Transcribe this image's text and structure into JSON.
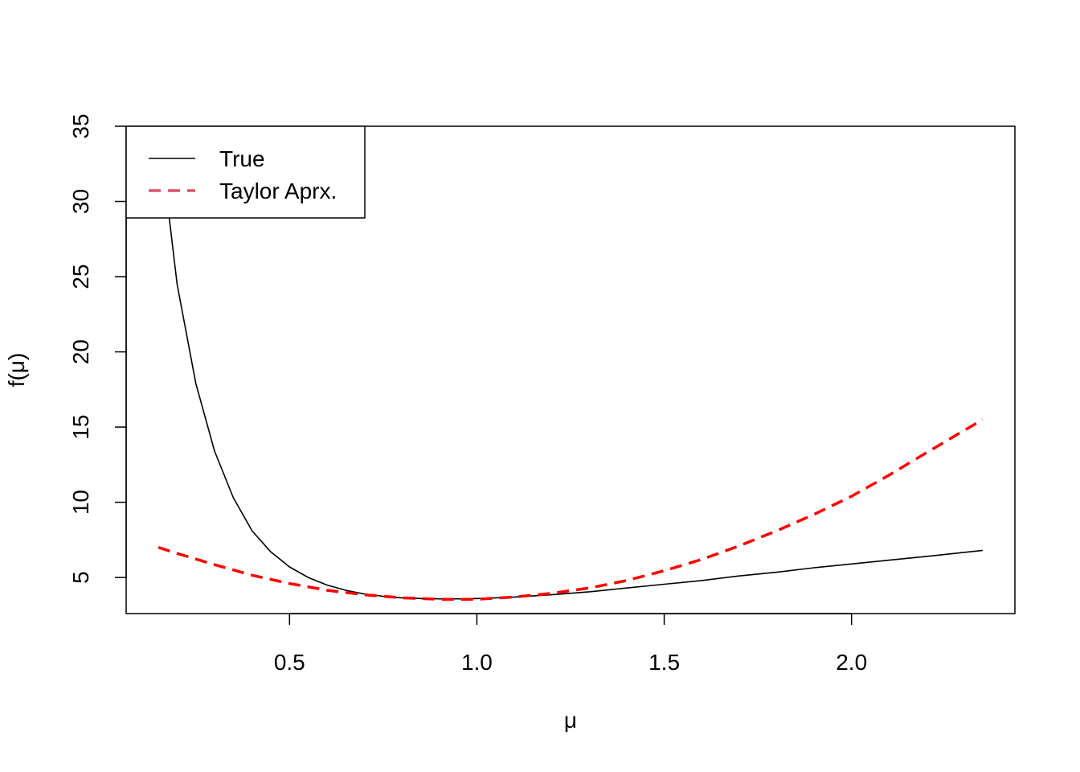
{
  "chart_data": {
    "type": "line",
    "title": "",
    "xlabel": "μ",
    "ylabel": "f(μ)",
    "xlim": [
      0.064,
      2.436
    ],
    "ylim": [
      2.6,
      35
    ],
    "x_ticks": [
      0.5,
      1.0,
      1.5,
      2.0
    ],
    "x_tick_labels": [
      "0.5",
      "1.0",
      "1.5",
      "2.0"
    ],
    "y_ticks": [
      5,
      10,
      15,
      20,
      25,
      30,
      35
    ],
    "y_tick_labels": [
      "5",
      "10",
      "15",
      "20",
      "25",
      "30",
      "35"
    ],
    "grid": false,
    "legend": {
      "placement": "top-left",
      "entries": [
        {
          "label": "True",
          "color": "#000000",
          "dash": "solid"
        },
        {
          "label": "Taylor Aprx.",
          "color": "#DF536B",
          "dash": "dashed"
        }
      ]
    },
    "series": [
      {
        "label": "True",
        "color": "#000000",
        "style": "solid",
        "x": [
          0.15,
          0.2,
          0.25,
          0.3,
          0.35,
          0.4,
          0.45,
          0.5,
          0.55,
          0.6,
          0.65,
          0.7,
          0.75,
          0.8,
          0.85,
          0.9,
          0.95,
          1.0,
          1.05,
          1.1,
          1.2,
          1.3,
          1.4,
          1.5,
          1.6,
          1.7,
          1.8,
          1.9,
          2.0,
          2.1,
          2.2,
          2.35
        ],
        "y": [
          35.0,
          24.5,
          17.9,
          13.4,
          10.3,
          8.1,
          6.7,
          5.7,
          5.0,
          4.5,
          4.15,
          3.9,
          3.75,
          3.65,
          3.6,
          3.58,
          3.58,
          3.6,
          3.65,
          3.7,
          3.85,
          4.05,
          4.3,
          4.55,
          4.8,
          5.1,
          5.35,
          5.65,
          5.9,
          6.15,
          6.4,
          6.8
        ]
      },
      {
        "label": "Taylor Aprx.",
        "color": "#FF0000",
        "style": "dashed",
        "x": [
          0.15,
          0.2,
          0.3,
          0.4,
          0.5,
          0.6,
          0.7,
          0.8,
          0.9,
          1.0,
          1.1,
          1.2,
          1.3,
          1.4,
          1.5,
          1.6,
          1.7,
          1.8,
          1.9,
          2.0,
          2.1,
          2.2,
          2.35
        ],
        "y": [
          7.0,
          6.6,
          5.85,
          5.15,
          4.6,
          4.15,
          3.85,
          3.65,
          3.55,
          3.55,
          3.7,
          3.95,
          4.3,
          4.8,
          5.45,
          6.2,
          7.1,
          8.1,
          9.2,
          10.4,
          11.8,
          13.3,
          15.5
        ]
      }
    ]
  }
}
